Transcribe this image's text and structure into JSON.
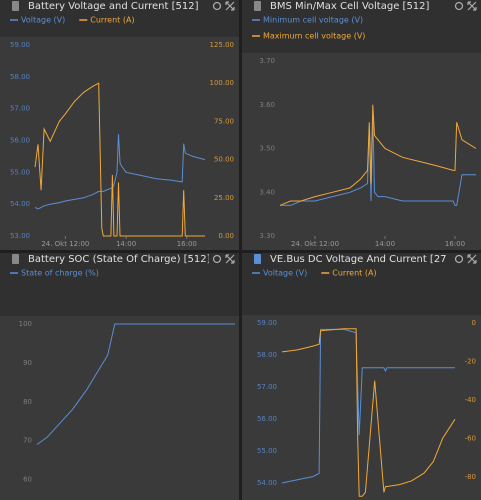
{
  "chart_data": [
    {
      "type": "line",
      "title": "Battery Voltage and Current [512]",
      "x": [
        11.0,
        11.1,
        11.2,
        11.3,
        11.5,
        11.8,
        12.0,
        12.3,
        12.6,
        12.9,
        13.1,
        13.2,
        13.25,
        13.5,
        13.55,
        13.6,
        13.7,
        13.75,
        13.8,
        13.85,
        14.0,
        14.5,
        15.0,
        15.5,
        15.85,
        15.9,
        15.95,
        16.2,
        16.6
      ],
      "xlim": [
        11.0,
        16.6
      ],
      "xticks": [
        {
          "value": 12,
          "label": "24. Okt 12:00"
        },
        {
          "value": 14,
          "label": "14:00"
        },
        {
          "value": 16,
          "label": "16:00"
        }
      ],
      "ylim": [
        53,
        59
      ],
      "yticks": [
        {
          "value": 59,
          "label": "59.00"
        },
        {
          "value": 58,
          "label": "58.00"
        },
        {
          "value": 57,
          "label": "57.00"
        },
        {
          "value": 56,
          "label": "56.00"
        },
        {
          "value": 55,
          "label": "55.00"
        },
        {
          "value": 54,
          "label": "54.00"
        },
        {
          "value": 53,
          "label": "53.00"
        }
      ],
      "y2lim": [
        0,
        125
      ],
      "y2ticks": [
        {
          "value": 125,
          "label": "125.00"
        },
        {
          "value": 100,
          "label": "100.00"
        },
        {
          "value": 75,
          "label": "75.00"
        },
        {
          "value": 50,
          "label": "50.00"
        },
        {
          "value": 25,
          "label": "25.00"
        },
        {
          "value": 0,
          "label": "0.00"
        }
      ],
      "series": [
        {
          "name": "Voltage (V)",
          "color": "#5b8fd6",
          "values": [
            53.9,
            53.85,
            53.9,
            53.95,
            54.0,
            54.05,
            54.1,
            54.15,
            54.2,
            54.3,
            54.4,
            54.4,
            54.4,
            54.5,
            54.5,
            54.6,
            55.0,
            56.2,
            55.3,
            55.2,
            55.0,
            54.9,
            54.8,
            54.75,
            54.7,
            55.9,
            55.6,
            55.5,
            55.4
          ]
        },
        {
          "name": "Current (A)",
          "color": "#f0a83a",
          "axis": "y2",
          "values": [
            45,
            60,
            30,
            70,
            62,
            75,
            80,
            88,
            94,
            98,
            100,
            5,
            0,
            0,
            40,
            0,
            0,
            35,
            0,
            0,
            0,
            0,
            0,
            0,
            0,
            30,
            0,
            0,
            0
          ]
        }
      ]
    },
    {
      "type": "line",
      "title": "BMS Min/Max Cell Voltage [512]",
      "x": [
        11.0,
        11.3,
        11.6,
        12.0,
        12.5,
        13.0,
        13.3,
        13.5,
        13.55,
        13.6,
        13.65,
        13.7,
        13.8,
        14.0,
        14.5,
        15.0,
        15.5,
        15.95,
        16.0,
        16.05,
        16.2,
        16.6
      ],
      "xlim": [
        11.0,
        16.6
      ],
      "xticks": [
        {
          "value": 12,
          "label": "24. Okt 12:00"
        },
        {
          "value": 14,
          "label": "14:00"
        },
        {
          "value": 16,
          "label": "16:00"
        }
      ],
      "ylim": [
        3.3,
        3.7
      ],
      "yticks": [
        {
          "value": 3.7,
          "label": "3.70"
        },
        {
          "value": 3.6,
          "label": "3.60"
        },
        {
          "value": 3.5,
          "label": "3.50"
        },
        {
          "value": 3.4,
          "label": "3.40"
        },
        {
          "value": 3.3,
          "label": "3.30"
        }
      ],
      "series": [
        {
          "name": "Minimum cell voltage (V)",
          "color": "#5b8fd6",
          "values": [
            3.37,
            3.37,
            3.38,
            3.38,
            3.39,
            3.4,
            3.41,
            3.42,
            3.55,
            3.38,
            3.58,
            3.4,
            3.39,
            3.39,
            3.38,
            3.38,
            3.38,
            3.38,
            3.37,
            3.37,
            3.44,
            3.44
          ]
        },
        {
          "name": "Maximum cell voltage (V)",
          "color": "#f0a83a",
          "values": [
            3.37,
            3.38,
            3.38,
            3.39,
            3.4,
            3.41,
            3.43,
            3.45,
            3.56,
            3.42,
            3.6,
            3.53,
            3.52,
            3.5,
            3.48,
            3.47,
            3.46,
            3.45,
            3.45,
            3.56,
            3.52,
            3.5
          ]
        }
      ]
    },
    {
      "type": "line",
      "title": "Battery SOC (State Of Charge) [512]",
      "x": [
        11.0,
        11.3,
        11.6,
        12.0,
        12.4,
        12.8,
        13.0,
        13.2,
        14.5,
        15.5,
        16.6
      ],
      "xlim": [
        11.0,
        16.6
      ],
      "ylim": [
        55,
        100
      ],
      "yticks": [
        100,
        90,
        80,
        70,
        60
      ],
      "series": [
        {
          "name": "State of charge (%)",
          "color": "#5b8fd6",
          "values": [
            69,
            71,
            74,
            78,
            83,
            89,
            92,
            100,
            100,
            100,
            100
          ]
        }
      ]
    },
    {
      "type": "line",
      "title": "VE.Bus DC Voltage And Current [27",
      "x": [
        11.0,
        11.5,
        12.0,
        12.2,
        12.25,
        13.0,
        13.4,
        13.45,
        13.5,
        13.6,
        13.7,
        14.0,
        14.3,
        14.35,
        14.4,
        14.8,
        15.2,
        15.6,
        15.9,
        16.2,
        16.6
      ],
      "xlim": [
        11.0,
        16.6
      ],
      "ylim": [
        53.47,
        59
      ],
      "yticks": [
        {
          "value": 59,
          "label": "59.00"
        },
        {
          "value": 58,
          "label": "58.00"
        },
        {
          "value": 57,
          "label": "57.00"
        },
        {
          "value": 56,
          "label": "56.00"
        },
        {
          "value": 55,
          "label": "55.00"
        },
        {
          "value": 54,
          "label": "54.00"
        }
      ],
      "y2lim": [
        -92,
        0
      ],
      "y2ticks": [
        0,
        -20,
        -40,
        -60,
        -80
      ],
      "series": [
        {
          "name": "Voltage (V)",
          "color": "#5b8fd6",
          "values": [
            54.0,
            54.1,
            54.2,
            54.3,
            58.8,
            58.8,
            58.7,
            57.0,
            55.5,
            57.6,
            57.6,
            57.6,
            57.6,
            57.5,
            57.6,
            57.6,
            57.6,
            57.6,
            57.6,
            57.6,
            57.6
          ]
        },
        {
          "name": "Current (A)",
          "color": "#f0a83a",
          "axis": "y2",
          "values": [
            -15,
            -14,
            -12,
            -11,
            -4,
            -3,
            -3,
            -60,
            -90,
            -90,
            -88,
            -30,
            -88,
            -85,
            -85,
            -84,
            -82,
            -78,
            -72,
            -60,
            -50
          ]
        }
      ]
    }
  ]
}
